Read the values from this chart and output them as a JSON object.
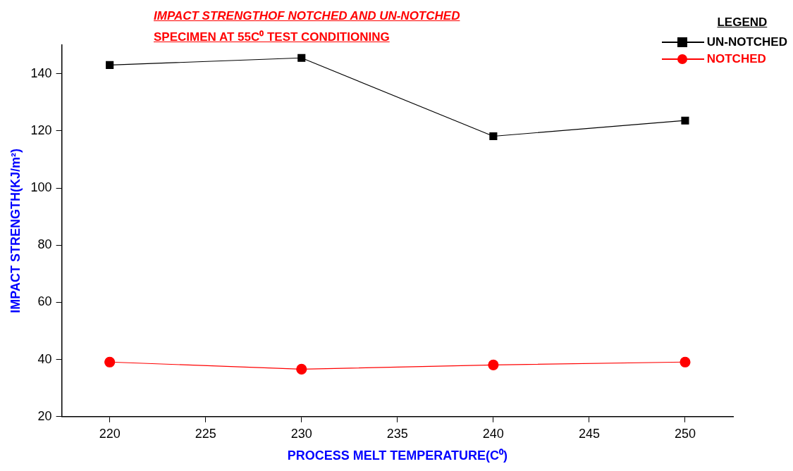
{
  "chart_data": {
    "type": "line",
    "title": "IMPACT STRENGTHOF NOTCHED AND UN-NOTCHED",
    "subtitle": "SPECIMEN AT 55C⁰ TEST CONDITIONING",
    "xlabel": "PROCESS MELT TEMPERATURE(C⁰)",
    "ylabel": "IMPACT STRENGTH(KJ/m²)",
    "legend_title": "LEGEND",
    "x": [
      220,
      230,
      240,
      250
    ],
    "series": [
      {
        "name": "UN-NOTCHED",
        "color": "#000000",
        "marker": "square",
        "values": [
          143.0,
          145.5,
          118.1,
          123.6
        ]
      },
      {
        "name": "NOTCHED",
        "color": "#ff0000",
        "marker": "circle",
        "values": [
          39.1,
          36.6,
          38.1,
          39.1
        ]
      }
    ],
    "xlim": [
      217.5,
      252.5
    ],
    "xticks": [
      220,
      225,
      230,
      235,
      240,
      245,
      250
    ],
    "ylim": [
      20,
      150
    ],
    "yticks": [
      20,
      40,
      60,
      80,
      100,
      120,
      140
    ],
    "grid": false,
    "legend": "top right",
    "line_style": "solid"
  }
}
